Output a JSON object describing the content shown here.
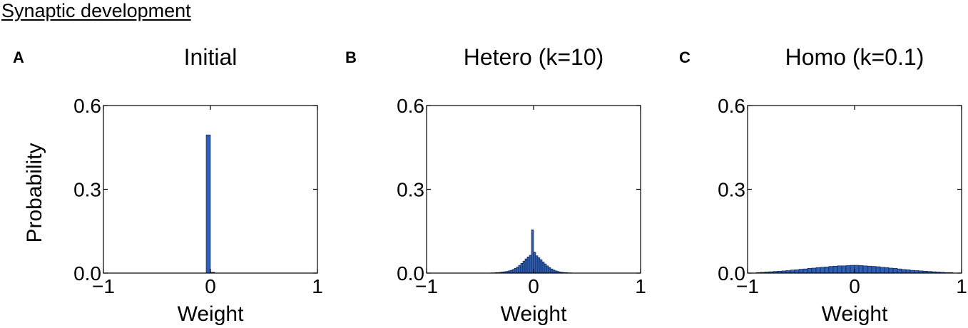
{
  "figure_title": "Synaptic development",
  "chart_data": [
    {
      "type": "bar",
      "panel_label": "A",
      "title": "Initial",
      "xlabel": "Weight",
      "ylabel": "Probability",
      "xlim": [
        -1,
        1
      ],
      "ylim": [
        0,
        0.6
      ],
      "xticks": [
        "−1",
        "0",
        "1"
      ],
      "yticks": [
        "0.0",
        "0.3",
        "0.6"
      ],
      "bin_width": 0.04,
      "bins": [
        {
          "x": -0.02,
          "y": 0.495
        },
        {
          "x": 0.02,
          "y": 0.003
        }
      ]
    },
    {
      "type": "bar",
      "panel_label": "B",
      "title": "Hetero (k=10)",
      "xlabel": "Weight",
      "ylabel": "",
      "xlim": [
        -1,
        1
      ],
      "ylim": [
        0,
        0.6
      ],
      "xticks": [
        "−1",
        "0",
        "1"
      ],
      "yticks": [
        "0.0",
        "0.3",
        "0.6"
      ],
      "bin_width": 0.02,
      "bins": [
        {
          "x": -0.39,
          "y": 0.001
        },
        {
          "x": -0.37,
          "y": 0.001
        },
        {
          "x": -0.35,
          "y": 0.002
        },
        {
          "x": -0.33,
          "y": 0.002
        },
        {
          "x": -0.31,
          "y": 0.003
        },
        {
          "x": -0.29,
          "y": 0.004
        },
        {
          "x": -0.27,
          "y": 0.005
        },
        {
          "x": -0.25,
          "y": 0.006
        },
        {
          "x": -0.23,
          "y": 0.008
        },
        {
          "x": -0.21,
          "y": 0.01
        },
        {
          "x": -0.19,
          "y": 0.013
        },
        {
          "x": -0.17,
          "y": 0.017
        },
        {
          "x": -0.15,
          "y": 0.022
        },
        {
          "x": -0.13,
          "y": 0.028
        },
        {
          "x": -0.11,
          "y": 0.035
        },
        {
          "x": -0.09,
          "y": 0.043
        },
        {
          "x": -0.07,
          "y": 0.051
        },
        {
          "x": -0.05,
          "y": 0.058
        },
        {
          "x": -0.03,
          "y": 0.064
        },
        {
          "x": -0.01,
          "y": 0.155
        },
        {
          "x": 0.01,
          "y": 0.075
        },
        {
          "x": 0.03,
          "y": 0.062
        },
        {
          "x": 0.05,
          "y": 0.055
        },
        {
          "x": 0.07,
          "y": 0.048
        },
        {
          "x": 0.09,
          "y": 0.04
        },
        {
          "x": 0.11,
          "y": 0.033
        },
        {
          "x": 0.13,
          "y": 0.026
        },
        {
          "x": 0.15,
          "y": 0.02
        },
        {
          "x": 0.17,
          "y": 0.015
        },
        {
          "x": 0.19,
          "y": 0.011
        },
        {
          "x": 0.21,
          "y": 0.008
        },
        {
          "x": 0.23,
          "y": 0.006
        },
        {
          "x": 0.25,
          "y": 0.004
        },
        {
          "x": 0.27,
          "y": 0.003
        },
        {
          "x": 0.29,
          "y": 0.002
        },
        {
          "x": 0.31,
          "y": 0.002
        },
        {
          "x": 0.33,
          "y": 0.001
        },
        {
          "x": 0.35,
          "y": 0.001
        }
      ]
    },
    {
      "type": "bar",
      "panel_label": "C",
      "title": "Homo (k=0.1)",
      "xlabel": "Weight",
      "ylabel": "",
      "xlim": [
        -1,
        1
      ],
      "ylim": [
        0,
        0.6
      ],
      "xticks": [
        "−1",
        "0",
        "1"
      ],
      "yticks": [
        "0.0",
        "0.3",
        "0.6"
      ],
      "bin_width": 0.04,
      "bins": [
        {
          "x": -0.9,
          "y": 0.002
        },
        {
          "x": -0.86,
          "y": 0.003
        },
        {
          "x": -0.82,
          "y": 0.004
        },
        {
          "x": -0.78,
          "y": 0.005
        },
        {
          "x": -0.74,
          "y": 0.006
        },
        {
          "x": -0.7,
          "y": 0.007
        },
        {
          "x": -0.66,
          "y": 0.008
        },
        {
          "x": -0.62,
          "y": 0.009
        },
        {
          "x": -0.58,
          "y": 0.011
        },
        {
          "x": -0.54,
          "y": 0.012
        },
        {
          "x": -0.5,
          "y": 0.014
        },
        {
          "x": -0.46,
          "y": 0.015
        },
        {
          "x": -0.42,
          "y": 0.017
        },
        {
          "x": -0.38,
          "y": 0.018
        },
        {
          "x": -0.34,
          "y": 0.02
        },
        {
          "x": -0.3,
          "y": 0.021
        },
        {
          "x": -0.26,
          "y": 0.022
        },
        {
          "x": -0.22,
          "y": 0.024
        },
        {
          "x": -0.18,
          "y": 0.025
        },
        {
          "x": -0.14,
          "y": 0.026
        },
        {
          "x": -0.1,
          "y": 0.026
        },
        {
          "x": -0.06,
          "y": 0.027
        },
        {
          "x": -0.02,
          "y": 0.028
        },
        {
          "x": 0.02,
          "y": 0.028
        },
        {
          "x": 0.06,
          "y": 0.027
        },
        {
          "x": 0.1,
          "y": 0.026
        },
        {
          "x": 0.14,
          "y": 0.025
        },
        {
          "x": 0.18,
          "y": 0.024
        },
        {
          "x": 0.22,
          "y": 0.023
        },
        {
          "x": 0.26,
          "y": 0.021
        },
        {
          "x": 0.3,
          "y": 0.02
        },
        {
          "x": 0.34,
          "y": 0.018
        },
        {
          "x": 0.38,
          "y": 0.017
        },
        {
          "x": 0.42,
          "y": 0.015
        },
        {
          "x": 0.46,
          "y": 0.013
        },
        {
          "x": 0.5,
          "y": 0.012
        },
        {
          "x": 0.54,
          "y": 0.01
        },
        {
          "x": 0.58,
          "y": 0.009
        },
        {
          "x": 0.62,
          "y": 0.008
        },
        {
          "x": 0.66,
          "y": 0.007
        },
        {
          "x": 0.7,
          "y": 0.006
        },
        {
          "x": 0.74,
          "y": 0.005
        },
        {
          "x": 0.78,
          "y": 0.004
        },
        {
          "x": 0.82,
          "y": 0.003
        },
        {
          "x": 0.86,
          "y": 0.002
        },
        {
          "x": 0.9,
          "y": 0.002
        }
      ]
    }
  ],
  "colors": {
    "bar_fill": "#2e5fb4",
    "bar_edge": "#0a1a3c",
    "axis": "#000000"
  }
}
